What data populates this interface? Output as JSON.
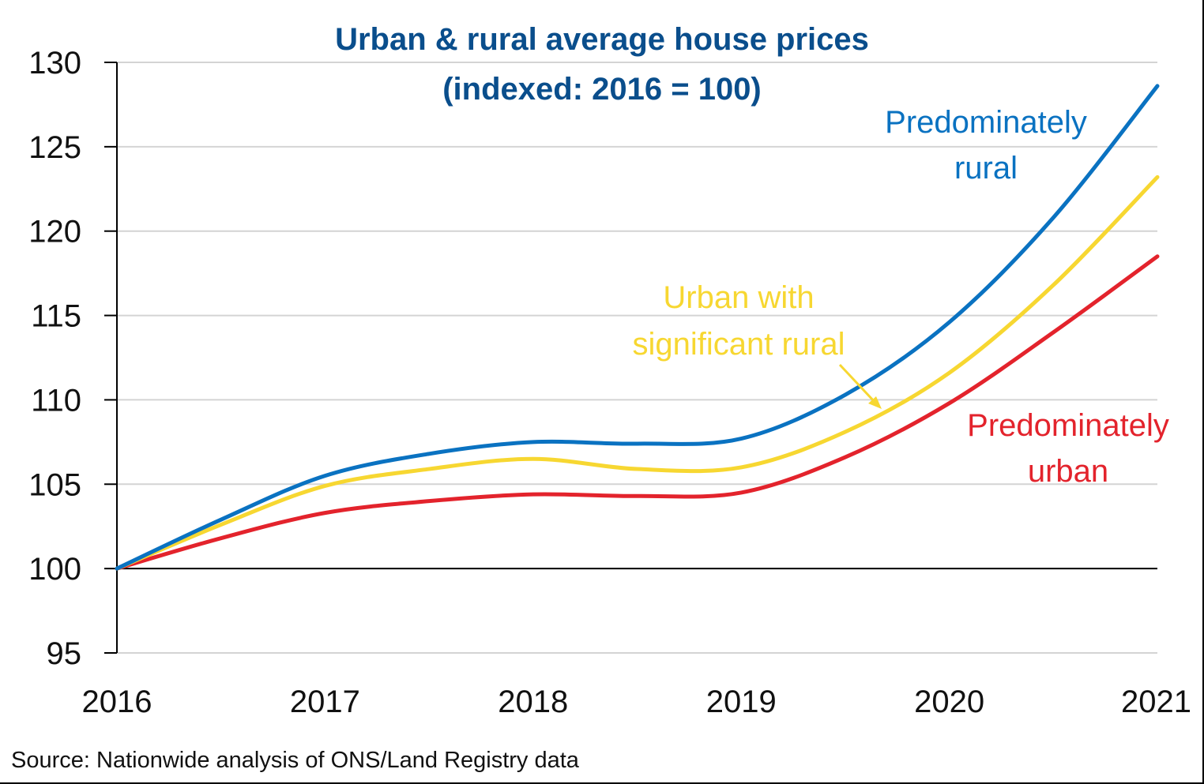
{
  "chart_data": {
    "type": "line",
    "title": "Urban & rural average house prices",
    "subtitle": "(indexed: 2016 = 100)",
    "xlabel": "",
    "ylabel": "",
    "x": [
      2016,
      2016.5,
      2017,
      2017.5,
      2018,
      2018.5,
      2019,
      2019.5,
      2020,
      2020.5,
      2021
    ],
    "x_ticks": [
      "2016",
      "2017",
      "2018",
      "2019",
      "2020",
      "2021"
    ],
    "x_tick_values": [
      2016,
      2017,
      2018,
      2019,
      2020,
      2021
    ],
    "xlim": [
      2016,
      2021
    ],
    "ylim": [
      95,
      130
    ],
    "y_ticks": [
      95,
      100,
      105,
      110,
      115,
      120,
      125,
      130
    ],
    "grid": true,
    "baseline": 100,
    "series": [
      {
        "name": "Predominately rural",
        "color": "#0a72c1",
        "values": [
          100,
          102.9,
          105.5,
          106.8,
          107.5,
          107.4,
          107.7,
          110.3,
          114.6,
          120.8,
          128.6
        ]
      },
      {
        "name": "Urban with significant rural",
        "color": "#f7d731",
        "values": [
          100,
          102.6,
          104.9,
          105.9,
          106.5,
          105.9,
          106.0,
          108.1,
          111.6,
          116.8,
          123.2
        ]
      },
      {
        "name": "Predominately urban",
        "color": "#e3232c",
        "values": [
          100,
          101.8,
          103.3,
          104.0,
          104.4,
          104.3,
          104.5,
          106.6,
          109.8,
          114.0,
          118.5
        ]
      }
    ],
    "annotations": [
      {
        "lines": [
          "Predominately",
          "rural"
        ],
        "color": "#0a72c1",
        "series": "Predominately rural"
      },
      {
        "lines": [
          "Urban with",
          "significant rural"
        ],
        "color": "#f7d731",
        "series": "Urban with significant rural",
        "arrow": true
      },
      {
        "lines": [
          "Predominately",
          "urban"
        ],
        "color": "#e3232c",
        "series": "Predominately urban"
      }
    ],
    "source": "Source: Nationwide analysis of ONS/Land Registry data"
  }
}
